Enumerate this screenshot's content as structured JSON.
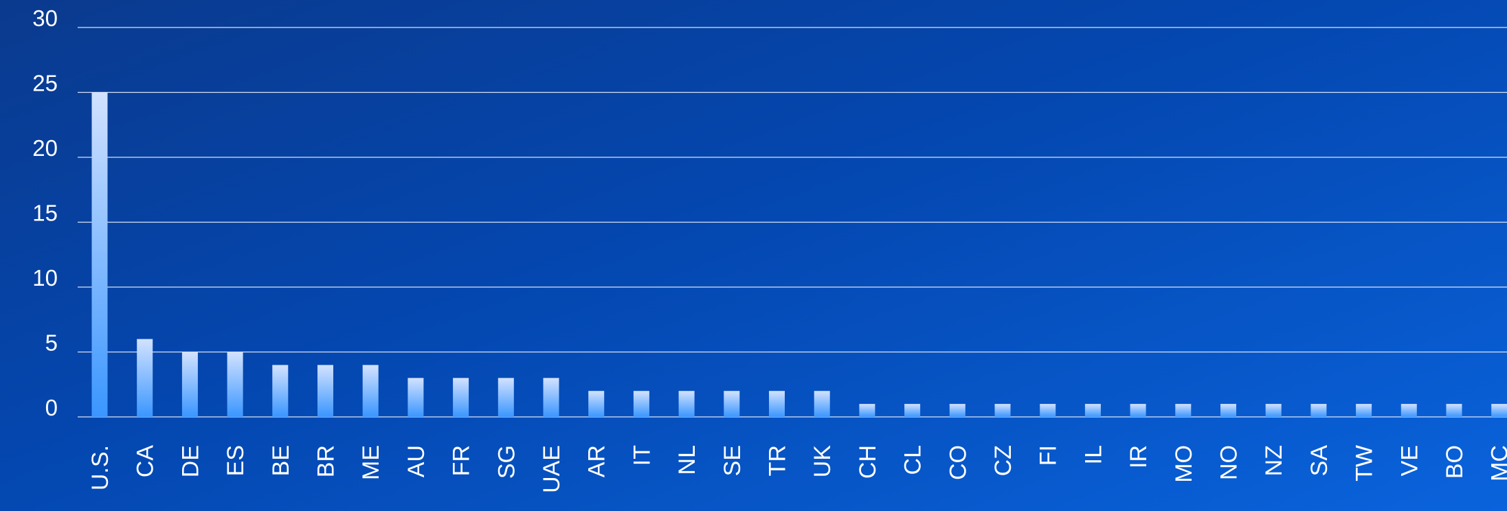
{
  "chart_data": {
    "type": "bar",
    "categories": [
      "U.S.",
      "CA",
      "DE",
      "ES",
      "BE",
      "BR",
      "ME",
      "AU",
      "FR",
      "SG",
      "UAE",
      "AR",
      "IT",
      "NL",
      "SE",
      "TR",
      "UK",
      "CH",
      "CL",
      "CO",
      "CZ",
      "FI",
      "IL",
      "IR",
      "MO",
      "NO",
      "NZ",
      "SA",
      "TW",
      "VE",
      "BO",
      "MC"
    ],
    "values": [
      25,
      6,
      5,
      5,
      4,
      4,
      4,
      3,
      3,
      3,
      3,
      2,
      2,
      2,
      2,
      2,
      2,
      1,
      1,
      1,
      1,
      1,
      1,
      1,
      1,
      1,
      1,
      1,
      1,
      1,
      1,
      1
    ],
    "yticks": [
      0,
      5,
      10,
      15,
      20,
      25,
      30
    ],
    "ylim": [
      0,
      30
    ],
    "grid": true,
    "bar_gradient": [
      "#d2e2ff",
      "#3a96ff"
    ]
  }
}
